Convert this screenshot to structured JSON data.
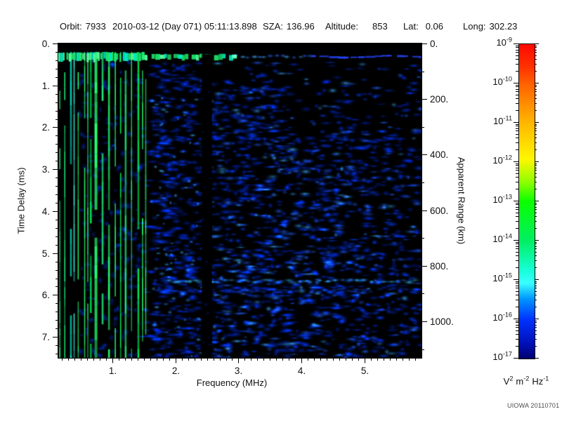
{
  "header": {
    "items": [
      {
        "label": "Orbit:",
        "value": "7933"
      },
      {
        "label": "",
        "value": "2010-03-12 (Day 071) 05:11:13.898"
      },
      {
        "label": "SZA:",
        "value": "136.96"
      },
      {
        "label": "Altitude:",
        "value": "853"
      },
      {
        "label": "Lat:",
        "value": "0.06"
      },
      {
        "label": "Long:",
        "value": "302.23"
      }
    ]
  },
  "credit": "UIOWA 20110701",
  "chart_data": {
    "type": "heatmap",
    "title": "",
    "description": "Radar sounder ionogram (AIS spectrogram): received spectral density vs sounding frequency and time delay. Bright green/cyan vertical stripes below ~1.45 MHz are ionospheric electron plasma oscillation echoes; bright horizontal band at ~0.3 ms is the local/first echo trace; a second faint horizontal echo band lies near 5.7 ms; a black telemetry gap column sits near 2.5 MHz; the rest is diffuse blue noise near 1e-16 V^2 m^-2 Hz^-1 on a black (<=1e-17) floor.",
    "x_axis": {
      "label": "Frequency (MHz)",
      "min": 0.145,
      "max": 5.9,
      "minor_step": 0.1,
      "major_ticks": [
        {
          "v": 1,
          "t": "1."
        },
        {
          "v": 2,
          "t": "2."
        },
        {
          "v": 3,
          "t": "3."
        },
        {
          "v": 4,
          "t": "4."
        },
        {
          "v": 5,
          "t": "5."
        }
      ]
    },
    "y_axis": {
      "label": "Time Delay (ms)",
      "min": 0,
      "max": 7.5,
      "minor_step": 0.2,
      "major_ticks": [
        {
          "v": 0,
          "t": "0."
        },
        {
          "v": 1,
          "t": "1."
        },
        {
          "v": 2,
          "t": "2."
        },
        {
          "v": 3,
          "t": "3."
        },
        {
          "v": 4,
          "t": "4."
        },
        {
          "v": 5,
          "t": "5."
        },
        {
          "v": 6,
          "t": "6."
        },
        {
          "v": 7,
          "t": "7."
        }
      ]
    },
    "y2_axis": {
      "label": "Apparent Range (km)",
      "min": 0,
      "max": 1131,
      "minor_step": 100,
      "major_ticks": [
        {
          "v": 0,
          "t": "0."
        },
        {
          "v": 200,
          "t": "200."
        },
        {
          "v": 400,
          "t": "400."
        },
        {
          "v": 600,
          "t": "600."
        },
        {
          "v": 800,
          "t": "800."
        },
        {
          "v": 1000,
          "t": "1000."
        }
      ]
    },
    "colorbar": {
      "scale": "log",
      "max": "1e-9",
      "min": "1e-17",
      "exponents": [
        -9,
        -10,
        -11,
        -12,
        -13,
        -14,
        -15,
        -16,
        -17
      ],
      "unit_parts": [
        {
          "base": "V",
          "sup": "2"
        },
        {
          "base": "m",
          "sup": "-2"
        },
        {
          "base": "Hz",
          "sup": "-1"
        }
      ],
      "stops": [
        [
          0,
          "#ff0800"
        ],
        [
          0.07,
          "#ff3000"
        ],
        [
          0.125,
          "#ff6000"
        ],
        [
          0.25,
          "#ffb600"
        ],
        [
          0.365,
          "#fff600"
        ],
        [
          0.44,
          "#8cff00"
        ],
        [
          0.5,
          "#0bff00"
        ],
        [
          0.625,
          "#00ef62"
        ],
        [
          0.72,
          "#16ffd8"
        ],
        [
          0.76,
          "#39ffff"
        ],
        [
          0.81,
          "#0096ff"
        ],
        [
          0.875,
          "#0033ff"
        ],
        [
          0.95,
          "#0011bb"
        ],
        [
          1,
          "#000070"
        ]
      ]
    },
    "render": {
      "seed": 20110701,
      "background": "#000000",
      "blank_top_t": 0.2,
      "stripes": {
        "f0": 0.145,
        "f1": 1.44,
        "t0": 0.2,
        "extra_f": [
          1.47,
          1.52
        ],
        "colors": [
          "#00e855",
          "#22ff6e",
          "#00e8c8",
          "#40ffe2",
          "#19f07d"
        ],
        "mottle_color": "#0032d8",
        "mottle_count": 260
      },
      "field": {
        "count": 2600,
        "t0": 0.45,
        "soft_start_f": 1.62,
        "soft_keep": 0.25,
        "gap_f0": 2.42,
        "gap_f1": 2.58,
        "gap_keep": 0.1,
        "sparse1": {
          "f": 3.6,
          "t": 2.1,
          "keep": 0.3
        },
        "sparse2": {
          "f": 2.6,
          "t": 1.05,
          "keep": 0.55
        },
        "right_f": 5.55,
        "right_keep": 0.65,
        "dense_f": 2.42,
        "colors": [
          "#0026cc",
          "#0038f0",
          "#2060ff",
          "#38a8ff"
        ],
        "cyan_specks": 70
      },
      "echo1": {
        "t": 0.31,
        "green_f1": 1.47,
        "dash_f1": 2.95,
        "blob_f1": 4.15,
        "line_f1": 5.9,
        "green_colors": [
          "#1df06f",
          "#00e8c0",
          "#55ff9d"
        ],
        "blue_blob_colors": [
          "#2e6bff",
          "#49b4ff"
        ],
        "line_color": "#2342f2"
      },
      "echo2": {
        "tA": 5.67,
        "fA": 1.9,
        "colorsA": [
          "#1f7dff",
          "#35c0ff"
        ],
        "tB": 5.9,
        "fB": 1.55,
        "colorB": "#1048e8"
      },
      "gap_sprinkle": 14
    }
  }
}
